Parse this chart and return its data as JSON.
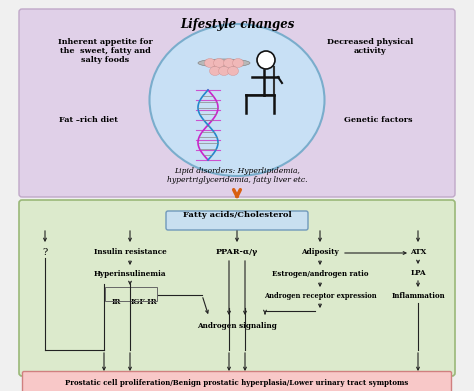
{
  "bg_color": "#f0f0f0",
  "top_panel_color": "#e0d0e8",
  "top_panel_border": "#c0a8c8",
  "bottom_panel_color": "#dceacc",
  "bottom_panel_border": "#9ab878",
  "final_bar_color": "#f8c8c8",
  "final_bar_border": "#d08080",
  "fatty_box_color": "#c8dff0",
  "fatty_box_border": "#7099bb",
  "title": "Lifestyle changes",
  "title_fontsize": 8.5,
  "ellipse_color": "#c8e0f5",
  "ellipse_edge": "#7aadcc",
  "top_labels": {
    "inherent": "Inherent appetite for\nthe  sweet, fatty and\nsalty foods",
    "decreased": "Decreased physical\nactivity",
    "fat_rich": "Fat –rich diet",
    "genetic": "Genetic factors"
  },
  "lipid_text": "Lipid disorders: Hyperlipidemia,\nhypertriglyceridemia, fatty liver etc.",
  "fatty_text": "Fatty acids/Cholesterol",
  "question": "?",
  "pathway_nodes": {
    "insulin_res": "Insulin resistance",
    "hyperinsulinemia": "Hyperinsulinemia",
    "IR": "IR",
    "IGFIR": "IGF-IR",
    "PPAR": "PPAR-α/γ",
    "adiposity": "Adiposity",
    "estrogen": "Estrogen/androgen ratio",
    "androgen_rec": "Androgen receptor expression",
    "androgen_sig": "Androgen signaling",
    "ATX": "ATX",
    "LPA": "LPA",
    "inflammation": "Inflammation"
  },
  "final_text": "Prostatic cell proliferation/Benign prostatic hyperplasia/Lower urinary tract symptoms",
  "arrow_color": "#222222",
  "orange_arrow": "#d86010"
}
